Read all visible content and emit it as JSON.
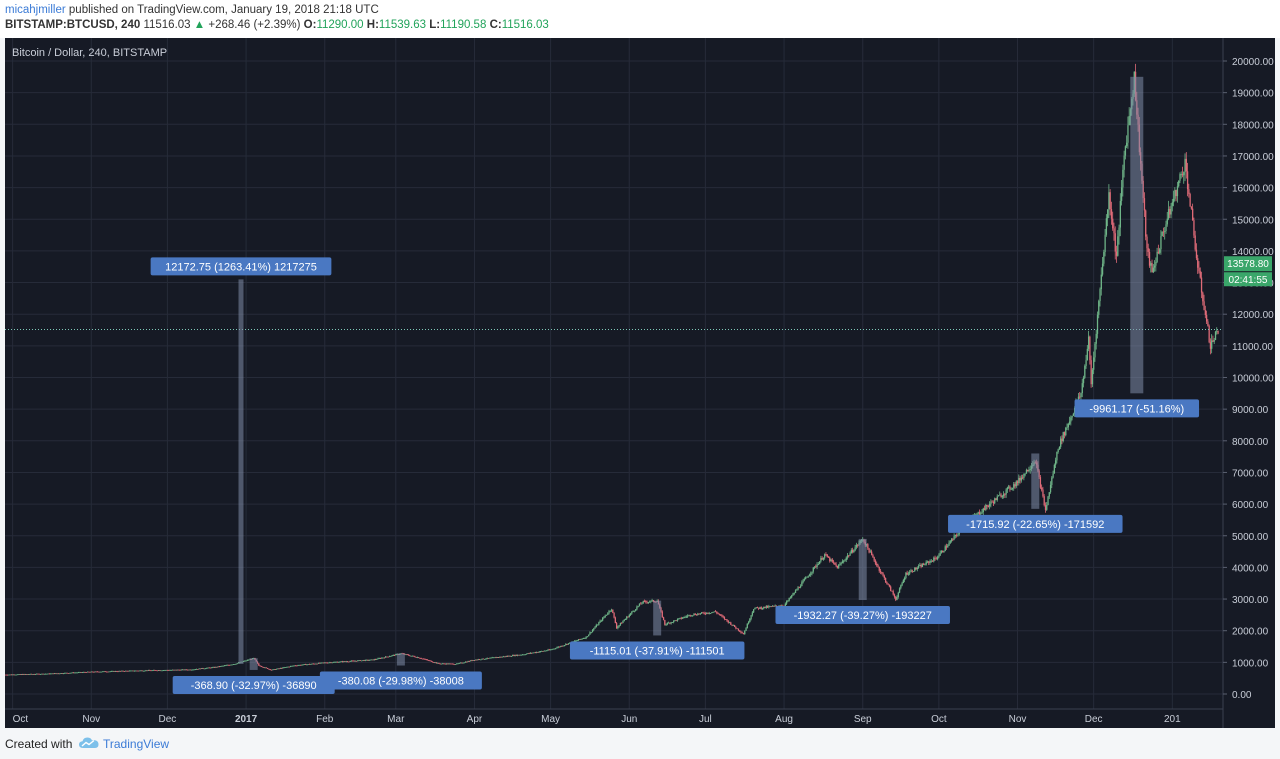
{
  "header": {
    "author": "micahjmiller",
    "published_text": "published on TradingView.com, January 19, 2018 21:18 UTC",
    "symbol_interval": "BITSTAMP:BTCUSD, 240",
    "last_price": "11516.03",
    "change": "+268.46 (+2.39%)",
    "open_label": "O:",
    "open": "11290.00",
    "high_label": "H:",
    "high": "11539.63",
    "low_label": "L:",
    "low": "11190.58",
    "close_label": "C:",
    "close": "11516.03"
  },
  "footer": {
    "created_with": "Created with",
    "brand": "TradingView"
  },
  "colors": {
    "background": "#161a25",
    "grid": "#262b39",
    "up": "#6fb588",
    "down": "#e06b78",
    "label_bg": "#4a78c2",
    "measure_bar": "#7f8da8",
    "dotted_line": "#7ec8b8",
    "price_tag": "#3aa66a"
  },
  "chart_data": {
    "type": "candlestick",
    "title": "Bitcoin / Dollar, 240, BITSTAMP",
    "ylim": [
      0,
      20000
    ],
    "y_ticks": [
      "20000.00",
      "19000.00",
      "18000.00",
      "17000.00",
      "16000.00",
      "15000.00",
      "14000.00",
      "13000.00",
      "12000.00",
      "11000.00",
      "10000.00",
      "9000.00",
      "8000.00",
      "7000.00",
      "6000.00",
      "5000.00",
      "4000.00",
      "3000.00",
      "2000.00",
      "1000.00",
      "0.00"
    ],
    "x_ticks": [
      "Oct",
      "Nov",
      "Dec",
      "2017",
      "Feb",
      "Mar",
      "Apr",
      "May",
      "Jun",
      "Jul",
      "Aug",
      "Sep",
      "Oct",
      "Nov",
      "Dec",
      "201"
    ],
    "x_tick_dates": [
      "2016-10-01",
      "2016-11-01",
      "2016-12-01",
      "2017-01-01",
      "2017-02-01",
      "2017-03-01",
      "2017-04-01",
      "2017-05-01",
      "2017-06-01",
      "2017-07-01",
      "2017-08-01",
      "2017-09-01",
      "2017-10-01",
      "2017-11-01",
      "2017-12-01",
      "2018-01-01"
    ],
    "x_start": "2016-09-28",
    "x_end": "2018-01-19",
    "price_series": [
      [
        "2016-09-28",
        610
      ],
      [
        "2016-10-15",
        640
      ],
      [
        "2016-11-01",
        700
      ],
      [
        "2016-11-20",
        740
      ],
      [
        "2016-12-10",
        770
      ],
      [
        "2016-12-20",
        850
      ],
      [
        "2016-12-28",
        960
      ],
      [
        "2017-01-04",
        1130
      ],
      [
        "2017-01-06",
        900
      ],
      [
        "2017-01-11",
        760
      ],
      [
        "2017-01-20",
        900
      ],
      [
        "2017-02-01",
        990
      ],
      [
        "2017-02-20",
        1080
      ],
      [
        "2017-03-03",
        1280
      ],
      [
        "2017-03-10",
        1150
      ],
      [
        "2017-03-18",
        960
      ],
      [
        "2017-03-25",
        950
      ],
      [
        "2017-04-01",
        1080
      ],
      [
        "2017-04-20",
        1250
      ],
      [
        "2017-05-01",
        1400
      ],
      [
        "2017-05-15",
        1800
      ],
      [
        "2017-05-25",
        2700
      ],
      [
        "2017-05-27",
        2100
      ],
      [
        "2017-06-06",
        2900
      ],
      [
        "2017-06-12",
        2950
      ],
      [
        "2017-06-15",
        2200
      ],
      [
        "2017-06-25",
        2500
      ],
      [
        "2017-07-05",
        2600
      ],
      [
        "2017-07-16",
        1900
      ],
      [
        "2017-07-20",
        2700
      ],
      [
        "2017-08-01",
        2800
      ],
      [
        "2017-08-05",
        3200
      ],
      [
        "2017-08-17",
        4400
      ],
      [
        "2017-08-22",
        4000
      ],
      [
        "2017-09-01",
        4900
      ],
      [
        "2017-09-05",
        4300
      ],
      [
        "2017-09-14",
        3000
      ],
      [
        "2017-09-18",
        3800
      ],
      [
        "2017-09-30",
        4300
      ],
      [
        "2017-10-12",
        5400
      ],
      [
        "2017-10-21",
        6000
      ],
      [
        "2017-11-01",
        6700
      ],
      [
        "2017-11-08",
        7400
      ],
      [
        "2017-11-12",
        5800
      ],
      [
        "2017-11-17",
        7800
      ],
      [
        "2017-11-26",
        9500
      ],
      [
        "2017-11-29",
        11200
      ],
      [
        "2017-11-30",
        9800
      ],
      [
        "2017-12-07",
        15800
      ],
      [
        "2017-12-10",
        13800
      ],
      [
        "2017-12-13",
        17000
      ],
      [
        "2017-12-17",
        19500
      ],
      [
        "2017-12-22",
        14000
      ],
      [
        "2017-12-24",
        13300
      ],
      [
        "2017-12-28",
        14500
      ],
      [
        "2018-01-06",
        16800
      ],
      [
        "2018-01-11",
        13500
      ],
      [
        "2018-01-16",
        11000
      ],
      [
        "2018-01-19",
        11516
      ]
    ],
    "current_price_line": 11516.03,
    "price_tags": [
      "13578.80",
      "02:41:55"
    ],
    "measurements": [
      {
        "label": "12172.75 (1263.41%) 1217275",
        "x_date": "2016-12-30",
        "from": 950,
        "to": 13100,
        "label_pos": "above"
      },
      {
        "label": "-368.90 (-32.97%) -36890",
        "x_date": "2017-01-04",
        "from": 1130,
        "to": 760,
        "label_pos": "below"
      },
      {
        "label": "-380.08 (-29.98%) -38008",
        "x_date": "2017-03-03",
        "from": 1280,
        "to": 900,
        "label_pos": "below"
      },
      {
        "label": "-1115.01 (-37.91%) -111501",
        "x_date": "2017-06-12",
        "from": 2950,
        "to": 1850,
        "label_pos": "below"
      },
      {
        "label": "-1932.27 (-39.27%) -193227",
        "x_date": "2017-09-01",
        "from": 4900,
        "to": 2970,
        "label_pos": "below"
      },
      {
        "label": "-1715.92 (-22.65%) -171592",
        "x_date": "2017-11-08",
        "from": 7600,
        "to": 5850,
        "label_pos": "below"
      },
      {
        "label": "-9961.17 (-51.16%)",
        "x_date": "2017-12-18",
        "from": 19500,
        "to": 9500,
        "label_pos": "below"
      }
    ]
  }
}
